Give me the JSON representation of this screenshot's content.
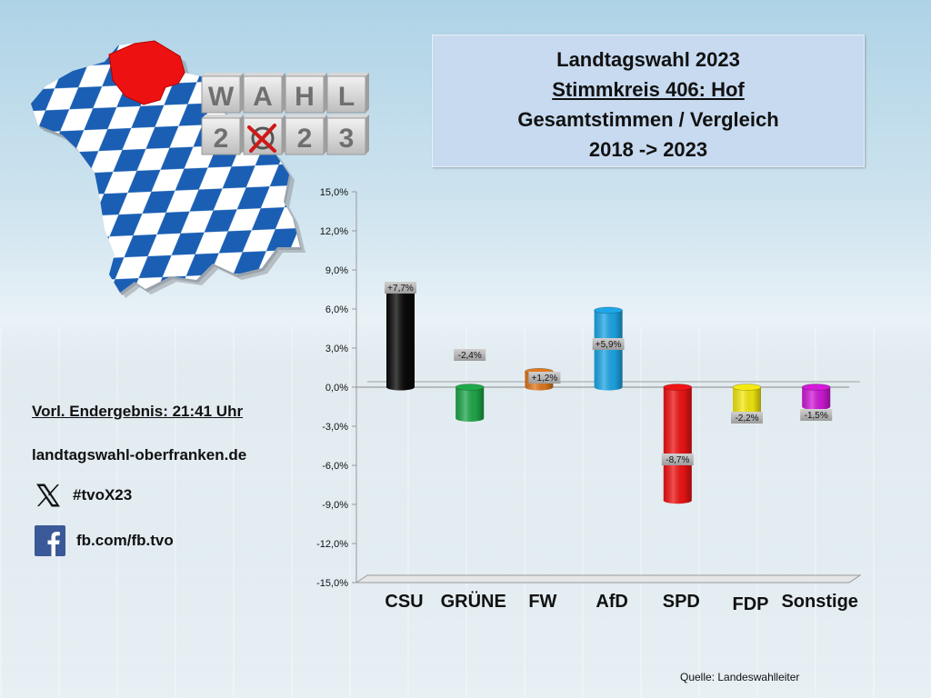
{
  "title": {
    "line1": "Landtagswahl 2023",
    "line2": "Stimmkreis 406: Hof",
    "line3": "Gesamtstimmen / Vergleich",
    "line4": "2018 -> 2023"
  },
  "logo": {
    "top_row": [
      "W",
      "A",
      "H",
      "L"
    ],
    "bottom_row": [
      "2",
      "",
      "2",
      "3"
    ]
  },
  "info": {
    "result_label": "Vorl. Endergebnis: 21:41 Uhr",
    "website": "landtagswahl-oberfranken.de",
    "x_handle": "#tvoX23",
    "facebook": "fb.com/fb.tvo"
  },
  "source": "Quelle:  Landeswahlleiter",
  "chart_data": {
    "type": "bar",
    "categories": [
      "CSU",
      "GRÜNE",
      "FW",
      "AfD",
      "SPD",
      "FDP",
      "Sonstige"
    ],
    "values": [
      7.7,
      -2.4,
      1.2,
      5.9,
      -8.7,
      -2.2,
      -1.5
    ],
    "data_labels": [
      "+7,7%",
      "-2,4%",
      "+1,2%",
      "+5,9%",
      "-8,7%",
      "-2,2%",
      "-1,5%"
    ],
    "colors": [
      "#0a0a0a",
      "#1fa84a",
      "#e07a1f",
      "#1ea7e8",
      "#f01414",
      "#f5ea10",
      "#d21ad8"
    ],
    "yticks": [
      15,
      12,
      9,
      6,
      3,
      0,
      -3,
      -6,
      -9,
      -12,
      -15
    ],
    "ytick_labels": [
      "15,0%",
      "12,0%",
      "9,0%",
      "6,0%",
      "3,0%",
      "0,0%",
      "-3,0%",
      "-6,0%",
      "-9,0%",
      "-12,0%",
      "-15,0%"
    ],
    "ylim": [
      -15,
      15
    ],
    "grid": false,
    "legend": "none"
  }
}
